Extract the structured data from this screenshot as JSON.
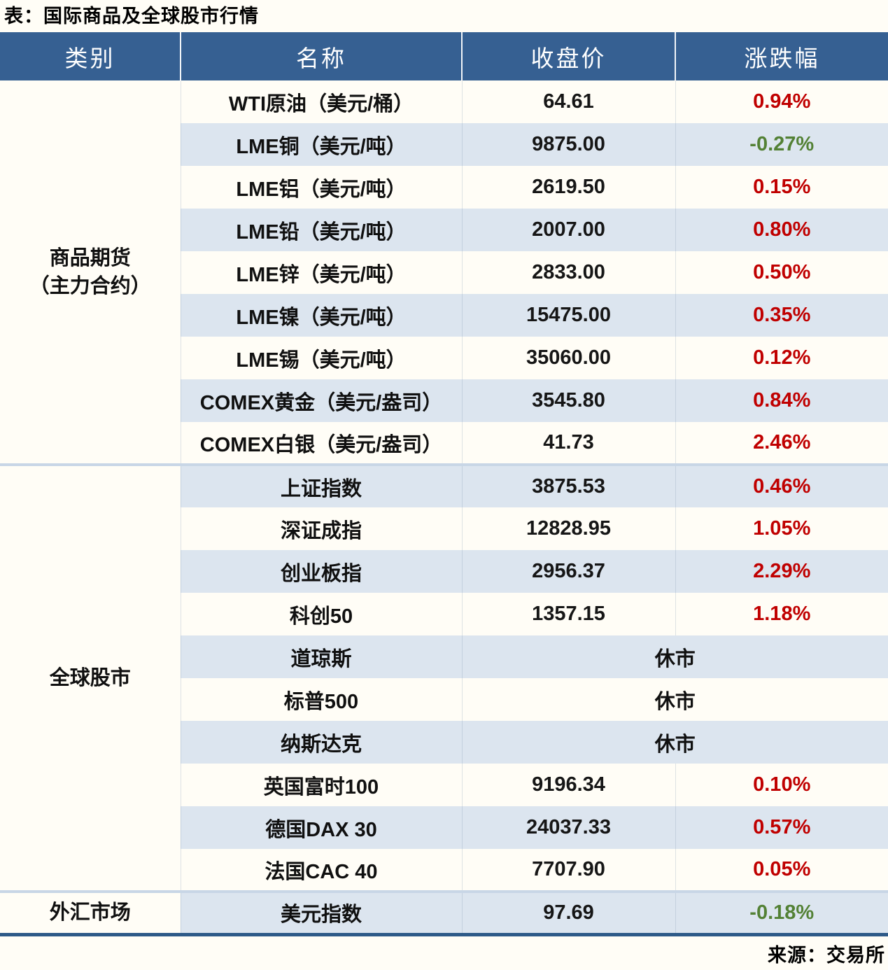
{
  "title": "表：国际商品及全球股市行情",
  "source": "来源：交易所",
  "colors": {
    "header_bg": "#366092",
    "row_stripe": "#dce5ef",
    "up_red": "#c00000",
    "down_green": "#538135",
    "bottom_border": "#2e5a88",
    "group_divider": "#c8d6e6"
  },
  "table": {
    "headers": {
      "category": "类别",
      "name": "名称",
      "close": "收盘价",
      "change": "涨跌幅"
    },
    "categories": [
      {
        "label": "商品期货（主力合约）",
        "line1": "商品期货",
        "line2": "（主力合约）",
        "rows": 9
      },
      {
        "label": "全球股市",
        "line1": "全球股市",
        "line2": "",
        "rows": 10
      },
      {
        "label": "外汇市场",
        "line1": "外汇市场",
        "line2": "",
        "rows": 1
      }
    ],
    "rows": [
      {
        "name": "WTI原油（美元/桶）",
        "close": "64.61",
        "change": "0.94%",
        "direction": "up"
      },
      {
        "name": "LME铜（美元/吨）",
        "close": "9875.00",
        "change": "-0.27%",
        "direction": "down"
      },
      {
        "name": "LME铝（美元/吨）",
        "close": "2619.50",
        "change": "0.15%",
        "direction": "up"
      },
      {
        "name": "LME铅（美元/吨）",
        "close": "2007.00",
        "change": "0.80%",
        "direction": "up"
      },
      {
        "name": "LME锌（美元/吨）",
        "close": "2833.00",
        "change": "0.50%",
        "direction": "up"
      },
      {
        "name": "LME镍（美元/吨）",
        "close": "15475.00",
        "change": "0.35%",
        "direction": "up"
      },
      {
        "name": "LME锡（美元/吨）",
        "close": "35060.00",
        "change": "0.12%",
        "direction": "up"
      },
      {
        "name": "COMEX黄金（美元/盎司）",
        "close": "3545.80",
        "change": "0.84%",
        "direction": "up"
      },
      {
        "name": "COMEX白银（美元/盎司）",
        "close": "41.73",
        "change": "2.46%",
        "direction": "up"
      },
      {
        "name": "上证指数",
        "close": "3875.53",
        "change": "0.46%",
        "direction": "up"
      },
      {
        "name": "深证成指",
        "close": "12828.95",
        "change": "1.05%",
        "direction": "up"
      },
      {
        "name": "创业板指",
        "close": "2956.37",
        "change": "2.29%",
        "direction": "up"
      },
      {
        "name": "科创50",
        "close": "1357.15",
        "change": "1.18%",
        "direction": "up"
      },
      {
        "name": "道琼斯",
        "status": "休市"
      },
      {
        "name": "标普500",
        "status": "休市"
      },
      {
        "name": "纳斯达克",
        "status": "休市"
      },
      {
        "name": "英国富时100",
        "close": "9196.34",
        "change": "0.10%",
        "direction": "up"
      },
      {
        "name": "德国DAX 30",
        "close": "24037.33",
        "change": "0.57%",
        "direction": "up"
      },
      {
        "name": "法国CAC 40",
        "close": "7707.90",
        "change": "0.05%",
        "direction": "up"
      },
      {
        "name": "美元指数",
        "close": "97.69",
        "change": "-0.18%",
        "direction": "down"
      }
    ]
  }
}
